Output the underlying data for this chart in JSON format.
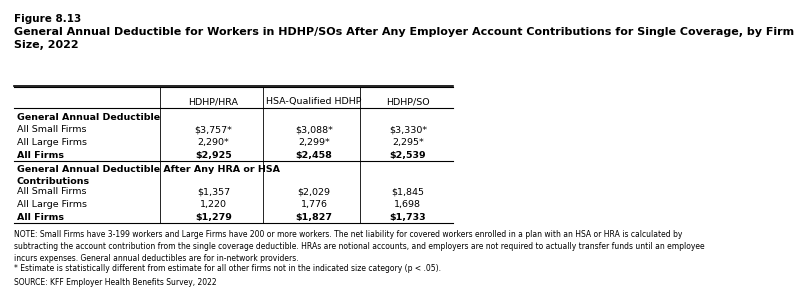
{
  "figure_label": "Figure 8.13",
  "title": "General Annual Deductible for Workers in HDHP/SOs After Any Employer Account Contributions for Single Coverage, by Firm\nSize, 2022",
  "col_headers": [
    "HDHP/HRA",
    "HSA-Qualified HDHP",
    "HDHP/SO"
  ],
  "section1_header": "General Annual Deductible",
  "section1_rows": [
    [
      "All Small Firms",
      "$3,757*",
      "$3,088*",
      "$3,330*"
    ],
    [
      "All Large Firms",
      "2,290*",
      "2,299*",
      "2,295*"
    ],
    [
      "All Firms",
      "$2,925",
      "$2,458",
      "$2,539"
    ]
  ],
  "section1_bold": [
    false,
    false,
    true
  ],
  "section2_header": "General Annual Deductible After Any HRA or HSA\nContributions",
  "section2_rows": [
    [
      "All Small Firms",
      "$1,357",
      "$2,029",
      "$1,845"
    ],
    [
      "All Large Firms",
      "1,220",
      "1,776",
      "1,698"
    ],
    [
      "All Firms",
      "$1,279",
      "$1,827",
      "$1,733"
    ]
  ],
  "section2_bold": [
    false,
    false,
    true
  ],
  "note1": "NOTE: Small Firms have 3-199 workers and Large Firms have 200 or more workers. The net liability for covered workers enrolled in a plan with an HSA or HRA is calculated by\nsubtracting the account contribution from the single coverage deductible. HRAs are notional accounts, and employers are not required to actually transfer funds until an employee\nincurs expenses. General annual deductibles are for in-network providers.",
  "note2": "* Estimate is statistically different from estimate for all other firms not in the indicated size category (p < .05).",
  "source": "SOURCE: KFF Employer Health Benefits Survey, 2022",
  "bg_color": "#ffffff",
  "text_color": "#000000",
  "table_line_color": "#000000"
}
